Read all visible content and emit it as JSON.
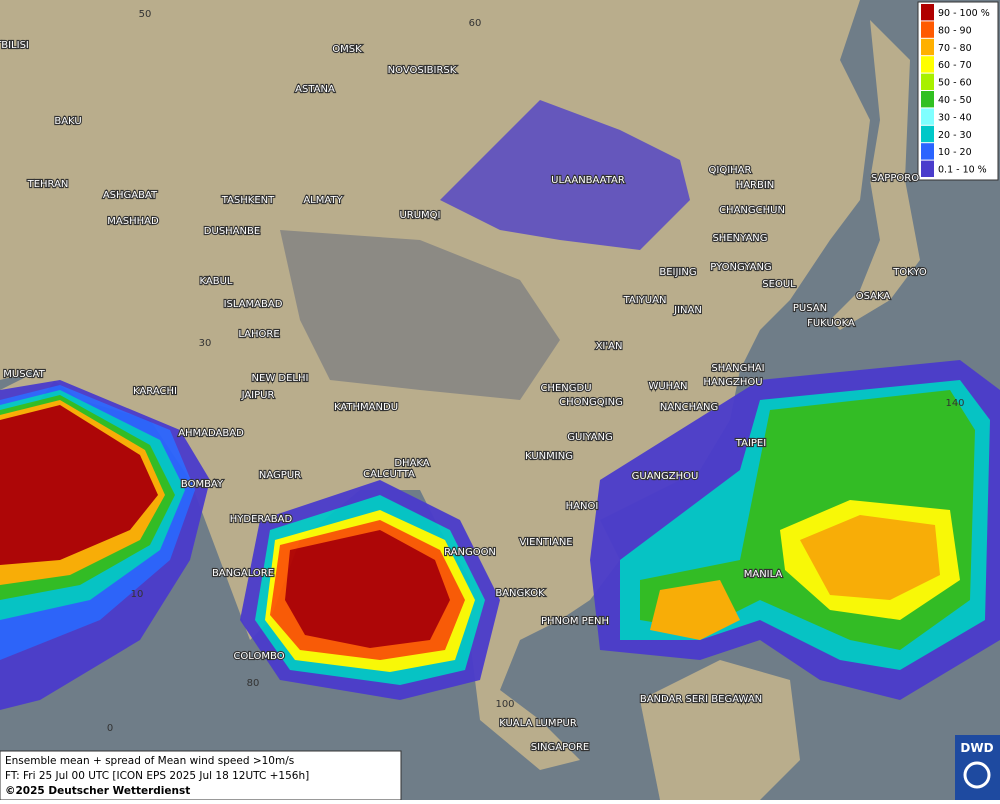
{
  "map": {
    "cities": [
      "OMSK",
      "NOVOSIBIRSK",
      "ASTANA",
      "TBILISI",
      "BAKU",
      "TEHRAN",
      "ASHGABAT",
      "MASHHAD",
      "TASHKENT",
      "ALMATY",
      "DUSHANBE",
      "URUMQI",
      "ULAANBAATAR",
      "QIQIHAR",
      "HARBIN",
      "CHANGCHUN",
      "SHENYANG",
      "SAPPORO",
      "BEIJING",
      "PYONGYANG",
      "SEOUL",
      "TOKYO",
      "OSAKA",
      "PUSAN",
      "FUKUOKA",
      "KABUL",
      "ISLAMABAD",
      "TAIYUAN",
      "JINAN",
      "LAHORE",
      "XI'AN",
      "MUSCAT",
      "NEW DELHI",
      "KARACHI",
      "JAIPUR",
      "SHANGHAI",
      "CHENGDU",
      "WUHAN",
      "HANGZHOU",
      "KATHMANDU",
      "CHONGQING",
      "NANCHANG",
      "AHMADABAD",
      "TAIPEI",
      "GUIYANG",
      "KUNMING",
      "DHAKA",
      "CALCUTTA",
      "GUANGZHOU",
      "NAGPUR",
      "BOMBAY",
      "HANOI",
      "HYDERABAD",
      "VIENTIANE",
      "RANGOON",
      "MANILA",
      "BANGALORE",
      "BANGKOK",
      "PHNOM PENH",
      "COLOMBO",
      "BANDAR SERI BEGAWAN",
      "KUALA LUMPUR",
      "SINGAPORE"
    ],
    "grid_labels": [
      "50",
      "60",
      "30",
      "10",
      "80",
      "0",
      "100",
      "140"
    ],
    "legend": [
      {
        "label": "90 - 100 %",
        "color": "#b00000"
      },
      {
        "label": "80 - 90",
        "color": "#ff5a00"
      },
      {
        "label": "70 - 80",
        "color": "#ffb000"
      },
      {
        "label": "60 - 70",
        "color": "#ffff00"
      },
      {
        "label": "50 - 60",
        "color": "#a8f000"
      },
      {
        "label": "40 - 50",
        "color": "#30c020"
      },
      {
        "label": "30 - 40",
        "color": "#80ffff"
      },
      {
        "label": "20 - 30",
        "color": "#00c8c8"
      },
      {
        "label": "10 - 20",
        "color": "#2a64ff"
      },
      {
        "label": "0.1 - 10 %",
        "color": "#4a3ccc"
      }
    ],
    "footer": [
      "Ensemble mean + spread of Mean wind speed >10m/s",
      "FT: Fri 25 Jul 00 UTC [ICON EPS 2025 Jul 18 12UTC +156h]",
      "©2025 Deutscher Wetterdienst"
    ],
    "logo": "DWD"
  }
}
